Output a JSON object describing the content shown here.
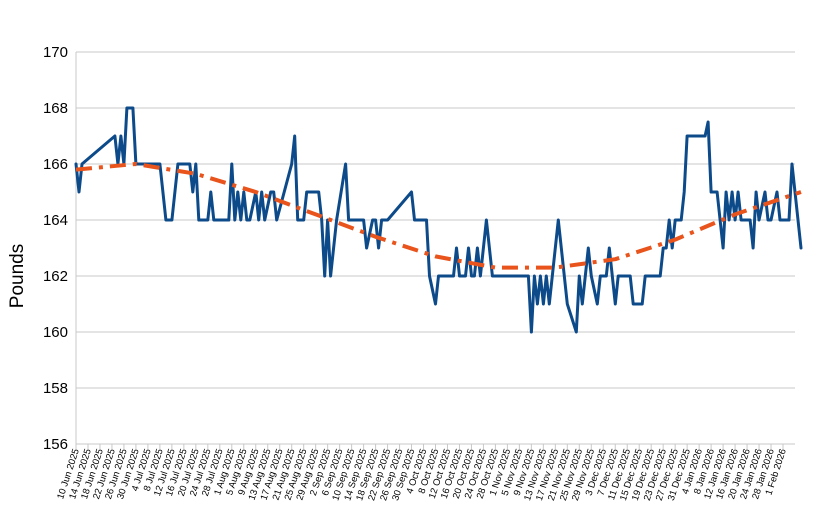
{
  "chart_data": {
    "type": "line",
    "title": "",
    "xlabel": "",
    "ylabel": "Pounds",
    "ylim": [
      156,
      170
    ],
    "yticks": [
      156,
      158,
      160,
      162,
      164,
      166,
      168,
      170
    ],
    "xlim": [
      "2025-06-10",
      "2026-02-05"
    ],
    "grid": "horizontal",
    "legend": "none",
    "x_tick_labels": [
      "10 Jun 2025",
      "14 Jun 2025",
      "18 Jun 2025",
      "22 Jun 2025",
      "26 Jun 2025",
      "30 Jun 2025",
      "4 Jul 2025",
      "8 Jul 2025",
      "12 Jul 2025",
      "16 Jul 2025",
      "20 Jul 2025",
      "24 Jul 2025",
      "28 Jul 2025",
      "1 Aug 2025",
      "5 Aug 2025",
      "9 Aug 2025",
      "13 Aug 2025",
      "17 Aug 2025",
      "21 Aug 2025",
      "25 Aug 2025",
      "29 Aug 2025",
      "2 Sep 2025",
      "6 Sep 2025",
      "10 Sep 2025",
      "14 Sep 2025",
      "18 Sep 2025",
      "22 Sep 2025",
      "26 Sep 2025",
      "30 Sep 2025",
      "4 Oct 2025",
      "8 Oct 2025",
      "12 Oct 2025",
      "16 Oct 2025",
      "20 Oct 2025",
      "24 Oct 2025",
      "28 Oct 2025",
      "1 Nov 2025",
      "5 Nov 2025",
      "9 Nov 2025",
      "13 Nov 2025",
      "17 Nov 2025",
      "21 Nov 2025",
      "25 Nov 2025",
      "29 Nov 2025",
      "3 Dec 2025",
      "7 Dec 2025",
      "11 Dec 2025",
      "15 Dec 2025",
      "19 Dec 2025",
      "23 Dec 2025",
      "27 Dec 2025",
      "31 Dec 2025",
      "4 Jan 2026",
      "8 Jan 2026",
      "12 Jan 2026",
      "16 Jan 2026",
      "20 Jan 2026",
      "24 Jan 2026",
      "28 Jan 2026",
      "1 Feb 2026"
    ],
    "series": [
      {
        "color": "#0d4a8a",
        "style": "solid",
        "points": [
          [
            "2025-06-10",
            166
          ],
          [
            "2025-06-11",
            165
          ],
          [
            "2025-06-12",
            166
          ],
          [
            "2025-06-23",
            167
          ],
          [
            "2025-06-24",
            166
          ],
          [
            "2025-06-25",
            167
          ],
          [
            "2025-06-26",
            166
          ],
          [
            "2025-06-27",
            168
          ],
          [
            "2025-06-29",
            168
          ],
          [
            "2025-06-30",
            166
          ],
          [
            "2025-07-08",
            166
          ],
          [
            "2025-07-10",
            164
          ],
          [
            "2025-07-12",
            164
          ],
          [
            "2025-07-14",
            166
          ],
          [
            "2025-07-18",
            166
          ],
          [
            "2025-07-19",
            165
          ],
          [
            "2025-07-20",
            166
          ],
          [
            "2025-07-21",
            164
          ],
          [
            "2025-07-24",
            164
          ],
          [
            "2025-07-25",
            165
          ],
          [
            "2025-07-26",
            164
          ],
          [
            "2025-07-31",
            164
          ],
          [
            "2025-08-01",
            166
          ],
          [
            "2025-08-02",
            164
          ],
          [
            "2025-08-03",
            165
          ],
          [
            "2025-08-04",
            164
          ],
          [
            "2025-08-05",
            165
          ],
          [
            "2025-08-06",
            164
          ],
          [
            "2025-08-07",
            164
          ],
          [
            "2025-08-09",
            165
          ],
          [
            "2025-08-10",
            164
          ],
          [
            "2025-08-11",
            165
          ],
          [
            "2025-08-12",
            164
          ],
          [
            "2025-08-14",
            165
          ],
          [
            "2025-08-15",
            165
          ],
          [
            "2025-08-16",
            164
          ],
          [
            "2025-08-21",
            166
          ],
          [
            "2025-08-22",
            167
          ],
          [
            "2025-08-23",
            164
          ],
          [
            "2025-08-25",
            164
          ],
          [
            "2025-08-26",
            165
          ],
          [
            "2025-08-30",
            165
          ],
          [
            "2025-08-31",
            164
          ],
          [
            "2025-09-01",
            162
          ],
          [
            "2025-09-02",
            164
          ],
          [
            "2025-09-03",
            162
          ],
          [
            "2025-09-05",
            164
          ],
          [
            "2025-09-08",
            166
          ],
          [
            "2025-09-09",
            164
          ],
          [
            "2025-09-14",
            164
          ],
          [
            "2025-09-15",
            163
          ],
          [
            "2025-09-17",
            164
          ],
          [
            "2025-09-18",
            164
          ],
          [
            "2025-09-19",
            163
          ],
          [
            "2025-09-20",
            164
          ],
          [
            "2025-09-22",
            164
          ],
          [
            "2025-09-30",
            165
          ],
          [
            "2025-10-01",
            164
          ],
          [
            "2025-10-05",
            164
          ],
          [
            "2025-10-06",
            162
          ],
          [
            "2025-10-08",
            161
          ],
          [
            "2025-10-09",
            162
          ],
          [
            "2025-10-14",
            162
          ],
          [
            "2025-10-15",
            163
          ],
          [
            "2025-10-16",
            162
          ],
          [
            "2025-10-18",
            162
          ],
          [
            "2025-10-19",
            163
          ],
          [
            "2025-10-20",
            162
          ],
          [
            "2025-10-21",
            162
          ],
          [
            "2025-10-22",
            163
          ],
          [
            "2025-10-23",
            162
          ],
          [
            "2025-10-25",
            164
          ],
          [
            "2025-10-27",
            162
          ],
          [
            "2025-11-08",
            162
          ],
          [
            "2025-11-09",
            160
          ],
          [
            "2025-11-10",
            162
          ],
          [
            "2025-11-11",
            161
          ],
          [
            "2025-11-12",
            162
          ],
          [
            "2025-11-13",
            161
          ],
          [
            "2025-11-14",
            162
          ],
          [
            "2025-11-15",
            161
          ],
          [
            "2025-11-18",
            164
          ],
          [
            "2025-11-21",
            161
          ],
          [
            "2025-11-24",
            160
          ],
          [
            "2025-11-25",
            162
          ],
          [
            "2025-11-26",
            161
          ],
          [
            "2025-11-28",
            163
          ],
          [
            "2025-11-29",
            162
          ],
          [
            "2025-12-01",
            161
          ],
          [
            "2025-12-02",
            162
          ],
          [
            "2025-12-04",
            162
          ],
          [
            "2025-12-05",
            163
          ],
          [
            "2025-12-07",
            161
          ],
          [
            "2025-12-08",
            162
          ],
          [
            "2025-12-12",
            162
          ],
          [
            "2025-12-13",
            161
          ],
          [
            "2025-12-16",
            161
          ],
          [
            "2025-12-17",
            162
          ],
          [
            "2025-12-22",
            162
          ],
          [
            "2025-12-23",
            163
          ],
          [
            "2025-12-24",
            163
          ],
          [
            "2025-12-25",
            164
          ],
          [
            "2025-12-26",
            163
          ],
          [
            "2025-12-27",
            164
          ],
          [
            "2025-12-29",
            164
          ],
          [
            "2025-12-30",
            165
          ],
          [
            "2025-12-31",
            167
          ],
          [
            "2026-01-06",
            167
          ],
          [
            "2026-01-07",
            167.5
          ],
          [
            "2026-01-08",
            165
          ],
          [
            "2026-01-10",
            165
          ],
          [
            "2026-01-12",
            163
          ],
          [
            "2026-01-13",
            165
          ],
          [
            "2026-01-14",
            164
          ],
          [
            "2026-01-15",
            165
          ],
          [
            "2026-01-16",
            164
          ],
          [
            "2026-01-17",
            165
          ],
          [
            "2026-01-18",
            164
          ],
          [
            "2026-01-21",
            164
          ],
          [
            "2026-01-22",
            163
          ],
          [
            "2026-01-23",
            165
          ],
          [
            "2026-01-24",
            164
          ],
          [
            "2026-01-26",
            165
          ],
          [
            "2026-01-27",
            164
          ],
          [
            "2026-01-28",
            164
          ],
          [
            "2026-01-30",
            165
          ],
          [
            "2026-01-31",
            164
          ],
          [
            "2026-02-03",
            164
          ],
          [
            "2026-02-04",
            166
          ],
          [
            "2026-02-05",
            165
          ],
          [
            "2026-02-07",
            163
          ]
        ]
      },
      {
        "color": "#e8541c",
        "style": "dash-dot",
        "points": [
          [
            "2025-06-10",
            165.8
          ],
          [
            "2025-06-30",
            166.0
          ],
          [
            "2025-07-20",
            165.65
          ],
          [
            "2025-08-09",
            165.0
          ],
          [
            "2025-08-29",
            164.2
          ],
          [
            "2025-09-18",
            163.4
          ],
          [
            "2025-10-08",
            162.7
          ],
          [
            "2025-10-28",
            162.3
          ],
          [
            "2025-11-17",
            162.3
          ],
          [
            "2025-12-07",
            162.6
          ],
          [
            "2025-12-27",
            163.3
          ],
          [
            "2026-01-16",
            164.2
          ],
          [
            "2026-02-07",
            165.0
          ]
        ]
      }
    ]
  }
}
